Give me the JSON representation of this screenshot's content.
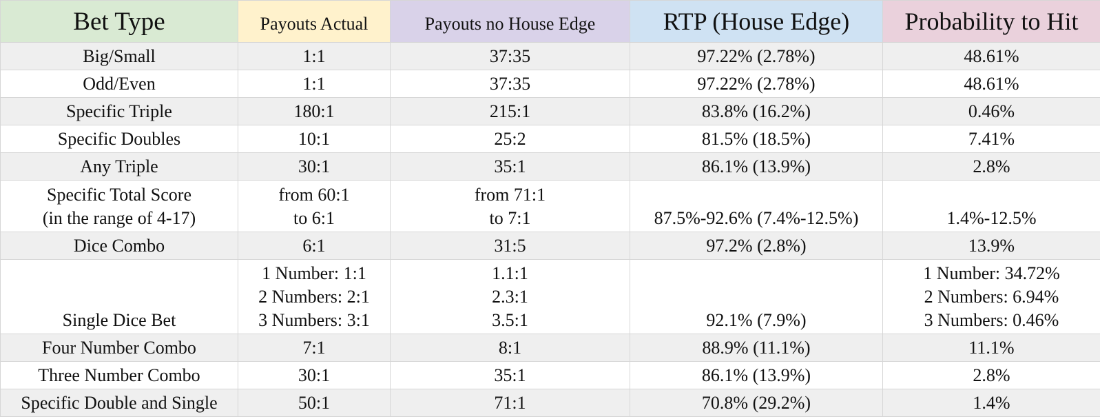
{
  "headers": [
    "Bet Type",
    "Payouts Actual",
    "Payouts no House Edge",
    "RTP (House Edge)",
    "Probability to Hit"
  ],
  "rows": [
    {
      "bet": [
        "Big/Small"
      ],
      "actual": [
        "1:1"
      ],
      "no_edge": [
        "37:35"
      ],
      "rtp": [
        "97.22%  (2.78%)"
      ],
      "prob": [
        "48.61%"
      ]
    },
    {
      "bet": [
        "Odd/Even"
      ],
      "actual": [
        "1:1"
      ],
      "no_edge": [
        "37:35"
      ],
      "rtp": [
        "97.22%  (2.78%)"
      ],
      "prob": [
        "48.61%"
      ]
    },
    {
      "bet": [
        "Specific Triple"
      ],
      "actual": [
        "180:1"
      ],
      "no_edge": [
        "215:1"
      ],
      "rtp": [
        "83.8% (16.2%)"
      ],
      "prob": [
        "0.46%"
      ]
    },
    {
      "bet": [
        "Specific Doubles"
      ],
      "actual": [
        "10:1"
      ],
      "no_edge": [
        "25:2"
      ],
      "rtp": [
        "81.5% (18.5%)"
      ],
      "prob": [
        "7.41%"
      ]
    },
    {
      "bet": [
        "Any Triple"
      ],
      "actual": [
        "30:1"
      ],
      "no_edge": [
        "35:1"
      ],
      "rtp": [
        "86.1% (13.9%)"
      ],
      "prob": [
        "2.8%"
      ]
    },
    {
      "bet": [
        "Specific Total Score",
        "(in the range of 4-17)"
      ],
      "actual": [
        "from 60:1",
        "to 6:1"
      ],
      "no_edge": [
        "from 71:1",
        "to 7:1"
      ],
      "rtp": [
        "87.5%-92.6% (7.4%-12.5%)"
      ],
      "prob": [
        "1.4%-12.5%"
      ]
    },
    {
      "bet": [
        "Dice Combo"
      ],
      "actual": [
        "6:1"
      ],
      "no_edge": [
        "31:5"
      ],
      "rtp": [
        "97.2% (2.8%)"
      ],
      "prob": [
        "13.9%"
      ]
    },
    {
      "bet": [
        "Single Dice Bet"
      ],
      "actual": [
        "1 Number: 1:1",
        "2 Numbers: 2:1",
        "3 Numbers: 3:1"
      ],
      "no_edge": [
        "1.1:1",
        "2.3:1",
        "3.5:1"
      ],
      "rtp": [
        "92.1% (7.9%)"
      ],
      "prob": [
        "1 Number: 34.72%",
        "2 Numbers: 6.94%",
        "3 Numbers: 0.46%"
      ]
    },
    {
      "bet": [
        "Four Number Combo"
      ],
      "actual": [
        "7:1"
      ],
      "no_edge": [
        "8:1"
      ],
      "rtp": [
        "88.9% (11.1%)"
      ],
      "prob": [
        "11.1%"
      ]
    },
    {
      "bet": [
        "Three Number Combo"
      ],
      "actual": [
        "30:1"
      ],
      "no_edge": [
        "35:1"
      ],
      "rtp": [
        "86.1% (13.9%)"
      ],
      "prob": [
        "2.8%"
      ]
    },
    {
      "bet": [
        "Specific Double and Single"
      ],
      "actual": [
        "50:1"
      ],
      "no_edge": [
        "71:1"
      ],
      "rtp": [
        "70.8% (29.2%)"
      ],
      "prob": [
        "1.4%"
      ]
    }
  ],
  "colors": {
    "bet_type_header": "#d9ead3",
    "payouts_actual_header": "#fff2cc",
    "payouts_no_edge_header": "#d9d2e9",
    "rtp_header": "#cfe2f3",
    "probability_header": "#ead1dc",
    "stripe": "#efefef",
    "grid": "#d6d6d6"
  }
}
